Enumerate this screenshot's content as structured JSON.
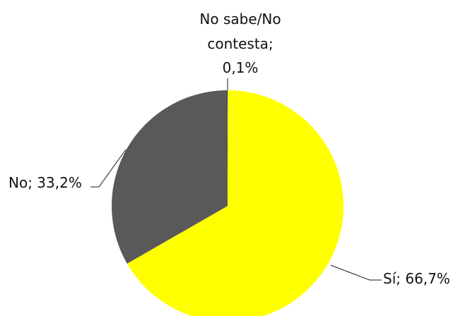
{
  "chart_data": {
    "type": "pie",
    "title": "",
    "slices": [
      {
        "label": "Sí",
        "value": 66.7,
        "display": "Sí; 66,7%",
        "color": "#ffff00"
      },
      {
        "label": "No",
        "value": 33.2,
        "display": "No; 33,2%",
        "color": "#595959"
      },
      {
        "label": "No sabe/No contesta",
        "value": 0.1,
        "display_lines": [
          "No sabe/No",
          "contesta;",
          "0,1%"
        ],
        "color": "#1f3864"
      }
    ]
  }
}
